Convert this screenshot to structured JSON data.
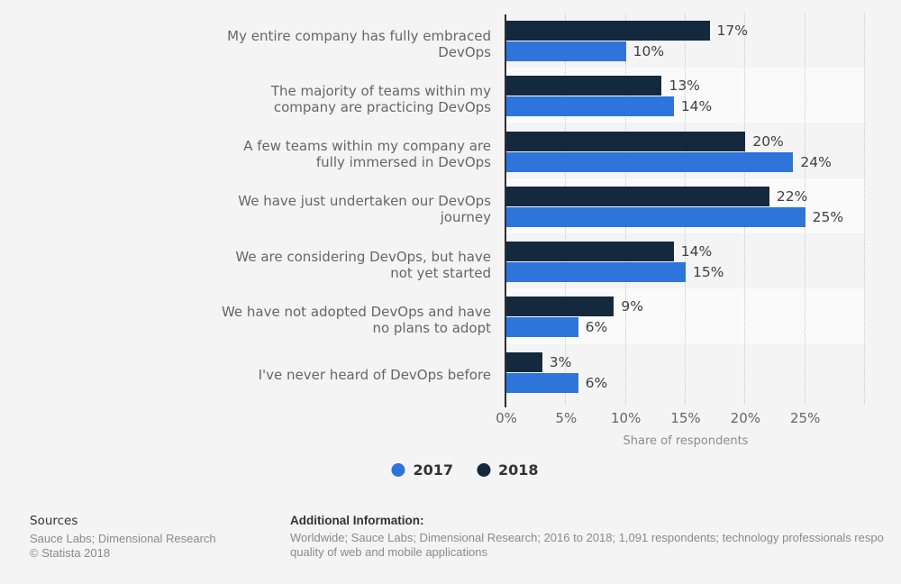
{
  "chart_data": {
    "type": "bar",
    "orientation": "horizontal",
    "title": "",
    "categories": [
      "My entire company has fully embraced\nDevOps",
      "The majority of teams within my\ncompany are practicing DevOps",
      "A few teams within my company are\nfully immersed in DevOps",
      "We have just undertaken our DevOps\njourney",
      "We are considering DevOps, but have\nnot yet started",
      "We have not adopted DevOps and have\nno plans to adopt",
      "I've never heard of DevOps before"
    ],
    "series": [
      {
        "name": "2017",
        "color": "#2d74db",
        "values": [
          10,
          14,
          24,
          25,
          15,
          6,
          6
        ]
      },
      {
        "name": "2018",
        "color": "#14293e",
        "values": [
          17,
          13,
          20,
          22,
          14,
          9,
          3
        ]
      }
    ],
    "value_label_suffix": "%",
    "xlabel": "Share of respondents",
    "x_ticks": [
      "0%",
      "5%",
      "10%",
      "15%",
      "20%",
      "25%"
    ],
    "xlim": [
      0,
      30
    ],
    "grid": "vertical-dotted",
    "legend_position": "bottom",
    "band_colors": [
      "#f4f4f4",
      "#fafafa"
    ]
  },
  "legend": {
    "items": [
      {
        "label": "2017",
        "color": "#2d74db"
      },
      {
        "label": "2018",
        "color": "#14293e"
      }
    ]
  },
  "footer": {
    "sources_title": "Sources",
    "sources_line1": "Sauce Labs; Dimensional Research",
    "sources_line2": "© Statista 2018",
    "additional_title": "Additional Information:",
    "additional_line1": "Worldwide; Sauce Labs; Dimensional Research; 2016 to 2018; 1,091 respondents; technology professionals respo",
    "additional_line2": "quality of web and mobile applications"
  },
  "colors": {
    "page_background": "#f4f4f4",
    "band_alt": "#fafafa",
    "gridline": "#c9c9c9",
    "axis_line": "#2e2e2e",
    "category_text": "#666666",
    "value_text": "#404040",
    "tick_text": "#666666",
    "axis_title_text": "#8c8c8c",
    "legend_text": "#333333",
    "footer_text": "#8a8a8a"
  }
}
